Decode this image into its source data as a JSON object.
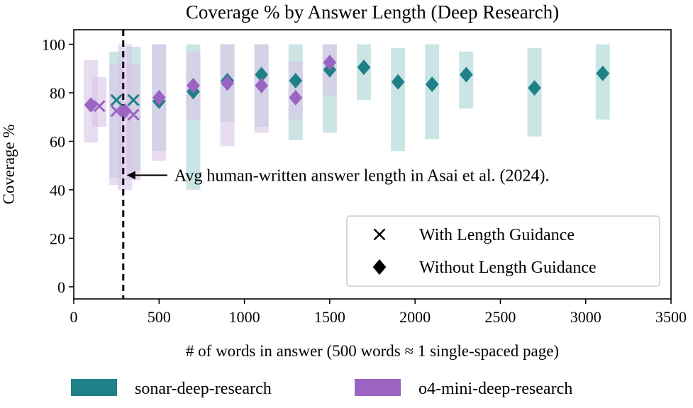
{
  "chart_data": {
    "type": "scatter",
    "title": "Coverage % by Answer Length (Deep Research)",
    "xlabel": "# of words in answer (500 words ≈ 1 single-spaced page)",
    "ylabel": "Coverage %",
    "xlim": [
      0,
      3500
    ],
    "ylim": [
      -5,
      106
    ],
    "xticks": [
      0,
      500,
      1000,
      1500,
      2000,
      2500,
      3000,
      3500
    ],
    "yticks": [
      0,
      20,
      40,
      60,
      80,
      100
    ],
    "grid": false,
    "reference_line": {
      "x": 290,
      "style": "dashed",
      "annotation": "Avg human-written answer length in Asai et al. (2024).",
      "arrow_y": 46
    },
    "marker_legend": {
      "placement": "lower-right",
      "entries": [
        {
          "marker": "x",
          "label": "With Length Guidance"
        },
        {
          "marker": "diamond",
          "label": "Without Length Guidance"
        }
      ]
    },
    "series": [
      {
        "name": "sonar-deep-research",
        "color": "#1f8088",
        "band_color": "#a9d4d4",
        "with_guidance": [
          {
            "x": 250,
            "y": 77,
            "low": 45,
            "high": 97
          },
          {
            "x": 350,
            "y": 77,
            "low": 48,
            "high": 99
          }
        ],
        "without_guidance": [
          {
            "x": 500,
            "y": 76.5,
            "low": 56,
            "high": 100
          },
          {
            "x": 700,
            "y": 80.5,
            "low": 40,
            "high": 100
          },
          {
            "x": 900,
            "y": 85,
            "low": 68,
            "high": 100
          },
          {
            "x": 1100,
            "y": 87.5,
            "low": 66,
            "high": 100
          },
          {
            "x": 1300,
            "y": 85,
            "low": 60.5,
            "high": 100
          },
          {
            "x": 1500,
            "y": 89.5,
            "low": 63.5,
            "high": 100
          },
          {
            "x": 1700,
            "y": 90.5,
            "low": 77,
            "high": 100
          },
          {
            "x": 1900,
            "y": 84.5,
            "low": 56,
            "high": 98.5
          },
          {
            "x": 2100,
            "y": 83.5,
            "low": 61,
            "high": 100
          },
          {
            "x": 2300,
            "y": 87.5,
            "low": 73.5,
            "high": 97
          },
          {
            "x": 2700,
            "y": 82,
            "low": 62,
            "high": 98.5
          },
          {
            "x": 3100,
            "y": 88,
            "low": 69,
            "high": 100
          }
        ]
      },
      {
        "name": "o4-mini-deep-research",
        "color": "#9b63c2",
        "band_color": "#d9c5e8",
        "with_guidance": [
          {
            "x": 150,
            "y": 74.5,
            "low": 66,
            "high": 86.5
          },
          {
            "x": 250,
            "y": 72.5,
            "low": 42,
            "high": 92
          },
          {
            "x": 350,
            "y": 71,
            "low": 44,
            "high": 92
          }
        ],
        "without_guidance": [
          {
            "x": 100,
            "y": 75,
            "low": 59.5,
            "high": 93.5
          },
          {
            "x": 300,
            "y": 72.5,
            "low": 40,
            "high": 100
          },
          {
            "x": 500,
            "y": 78,
            "low": 52,
            "high": 100
          },
          {
            "x": 700,
            "y": 83,
            "low": 69,
            "high": 97
          },
          {
            "x": 900,
            "y": 84,
            "low": 58,
            "high": 100
          },
          {
            "x": 1100,
            "y": 83,
            "low": 63.5,
            "high": 100
          },
          {
            "x": 1300,
            "y": 78,
            "low": 69,
            "high": 93
          },
          {
            "x": 1500,
            "y": 92.5,
            "low": 79,
            "high": 100
          }
        ]
      }
    ]
  }
}
